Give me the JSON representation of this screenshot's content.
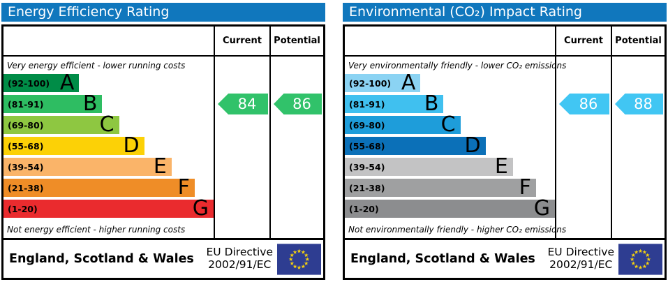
{
  "theme": {
    "header_bg": "#1077bd",
    "border_color": "#000000",
    "eu_flag": {
      "field_color": "#2e3d91",
      "star_color": "#f5d10e"
    }
  },
  "panels": [
    {
      "id": "energy",
      "title": "Energy Efficiency Rating",
      "columns": {
        "current": "Current",
        "potential": "Potential"
      },
      "top_caption": "Very energy efficient - lower running costs",
      "bottom_caption": "Not energy efficient - higher running costs",
      "bands": [
        {
          "range": "(92-100)",
          "letter": "A",
          "color": "#008c47"
        },
        {
          "range": "(81-91)",
          "letter": "B",
          "color": "#2ebd62"
        },
        {
          "range": "(69-80)",
          "letter": "C",
          "color": "#8ec741"
        },
        {
          "range": "(55-68)",
          "letter": "D",
          "color": "#fcd106"
        },
        {
          "range": "(39-54)",
          "letter": "E",
          "color": "#fab469"
        },
        {
          "range": "(21-38)",
          "letter": "F",
          "color": "#ef8d27"
        },
        {
          "range": "(1-20)",
          "letter": "G",
          "color": "#ea2b2e"
        }
      ],
      "current": {
        "value": "84",
        "color": "#31c26a"
      },
      "potential": {
        "value": "86",
        "color": "#31c26a"
      },
      "footer": {
        "region": "England, Scotland & Wales",
        "directive_line1": "EU Directive",
        "directive_line2": "2002/91/EC"
      }
    },
    {
      "id": "co2",
      "title": "Environmental (CO₂) Impact Rating",
      "columns": {
        "current": "Current",
        "potential": "Potential"
      },
      "top_caption": "Very environmentally friendly - lower CO₂ emissions",
      "bottom_caption": "Not environmentally friendly - higher CO₂ emissions",
      "bands": [
        {
          "range": "(92-100)",
          "letter": "A",
          "color": "#8bd3f3"
        },
        {
          "range": "(81-91)",
          "letter": "B",
          "color": "#40c0ef"
        },
        {
          "range": "(69-80)",
          "letter": "C",
          "color": "#1e9dda"
        },
        {
          "range": "(55-68)",
          "letter": "D",
          "color": "#0b70b8"
        },
        {
          "range": "(39-54)",
          "letter": "E",
          "color": "#c3c3c4"
        },
        {
          "range": "(21-38)",
          "letter": "F",
          "color": "#9fa0a1"
        },
        {
          "range": "(1-20)",
          "letter": "G",
          "color": "#8c8d8f"
        }
      ],
      "current": {
        "value": "86",
        "color": "#41c6f3"
      },
      "potential": {
        "value": "88",
        "color": "#41c6f3"
      },
      "footer": {
        "region": "England, Scotland & Wales",
        "directive_line1": "EU Directive",
        "directive_line2": "2002/91/EC"
      }
    }
  ],
  "chart_data": [
    {
      "type": "bar",
      "title": "Energy Efficiency Rating",
      "categories": [
        "A",
        "B",
        "C",
        "D",
        "E",
        "F",
        "G"
      ],
      "band_ranges": [
        "92-100",
        "81-91",
        "69-80",
        "55-68",
        "39-54",
        "21-38",
        "1-20"
      ],
      "band_colors": [
        "#008c47",
        "#2ebd62",
        "#8ec741",
        "#fcd106",
        "#fab469",
        "#ef8d27",
        "#ea2b2e"
      ],
      "current": 84,
      "potential": 86,
      "current_band": "B",
      "potential_band": "B",
      "scale": [
        1,
        100
      ],
      "top_caption": "Very energy efficient - lower running costs",
      "bottom_caption": "Not energy efficient - higher running costs",
      "footer": "England, Scotland & Wales, EU Directive 2002/91/EC"
    },
    {
      "type": "bar",
      "title": "Environmental (CO₂) Impact Rating",
      "categories": [
        "A",
        "B",
        "C",
        "D",
        "E",
        "F",
        "G"
      ],
      "band_ranges": [
        "92-100",
        "81-91",
        "69-80",
        "55-68",
        "39-54",
        "21-38",
        "1-20"
      ],
      "band_colors": [
        "#8bd3f3",
        "#40c0ef",
        "#1e9dda",
        "#0b70b8",
        "#c3c3c4",
        "#9fa0a1",
        "#8c8d8f"
      ],
      "current": 86,
      "potential": 88,
      "current_band": "B",
      "potential_band": "B",
      "scale": [
        1,
        100
      ],
      "top_caption": "Very environmentally friendly - lower CO₂ emissions",
      "bottom_caption": "Not environmentally friendly - higher CO₂ emissions",
      "footer": "England, Scotland & Wales, EU Directive 2002/91/EC"
    }
  ]
}
